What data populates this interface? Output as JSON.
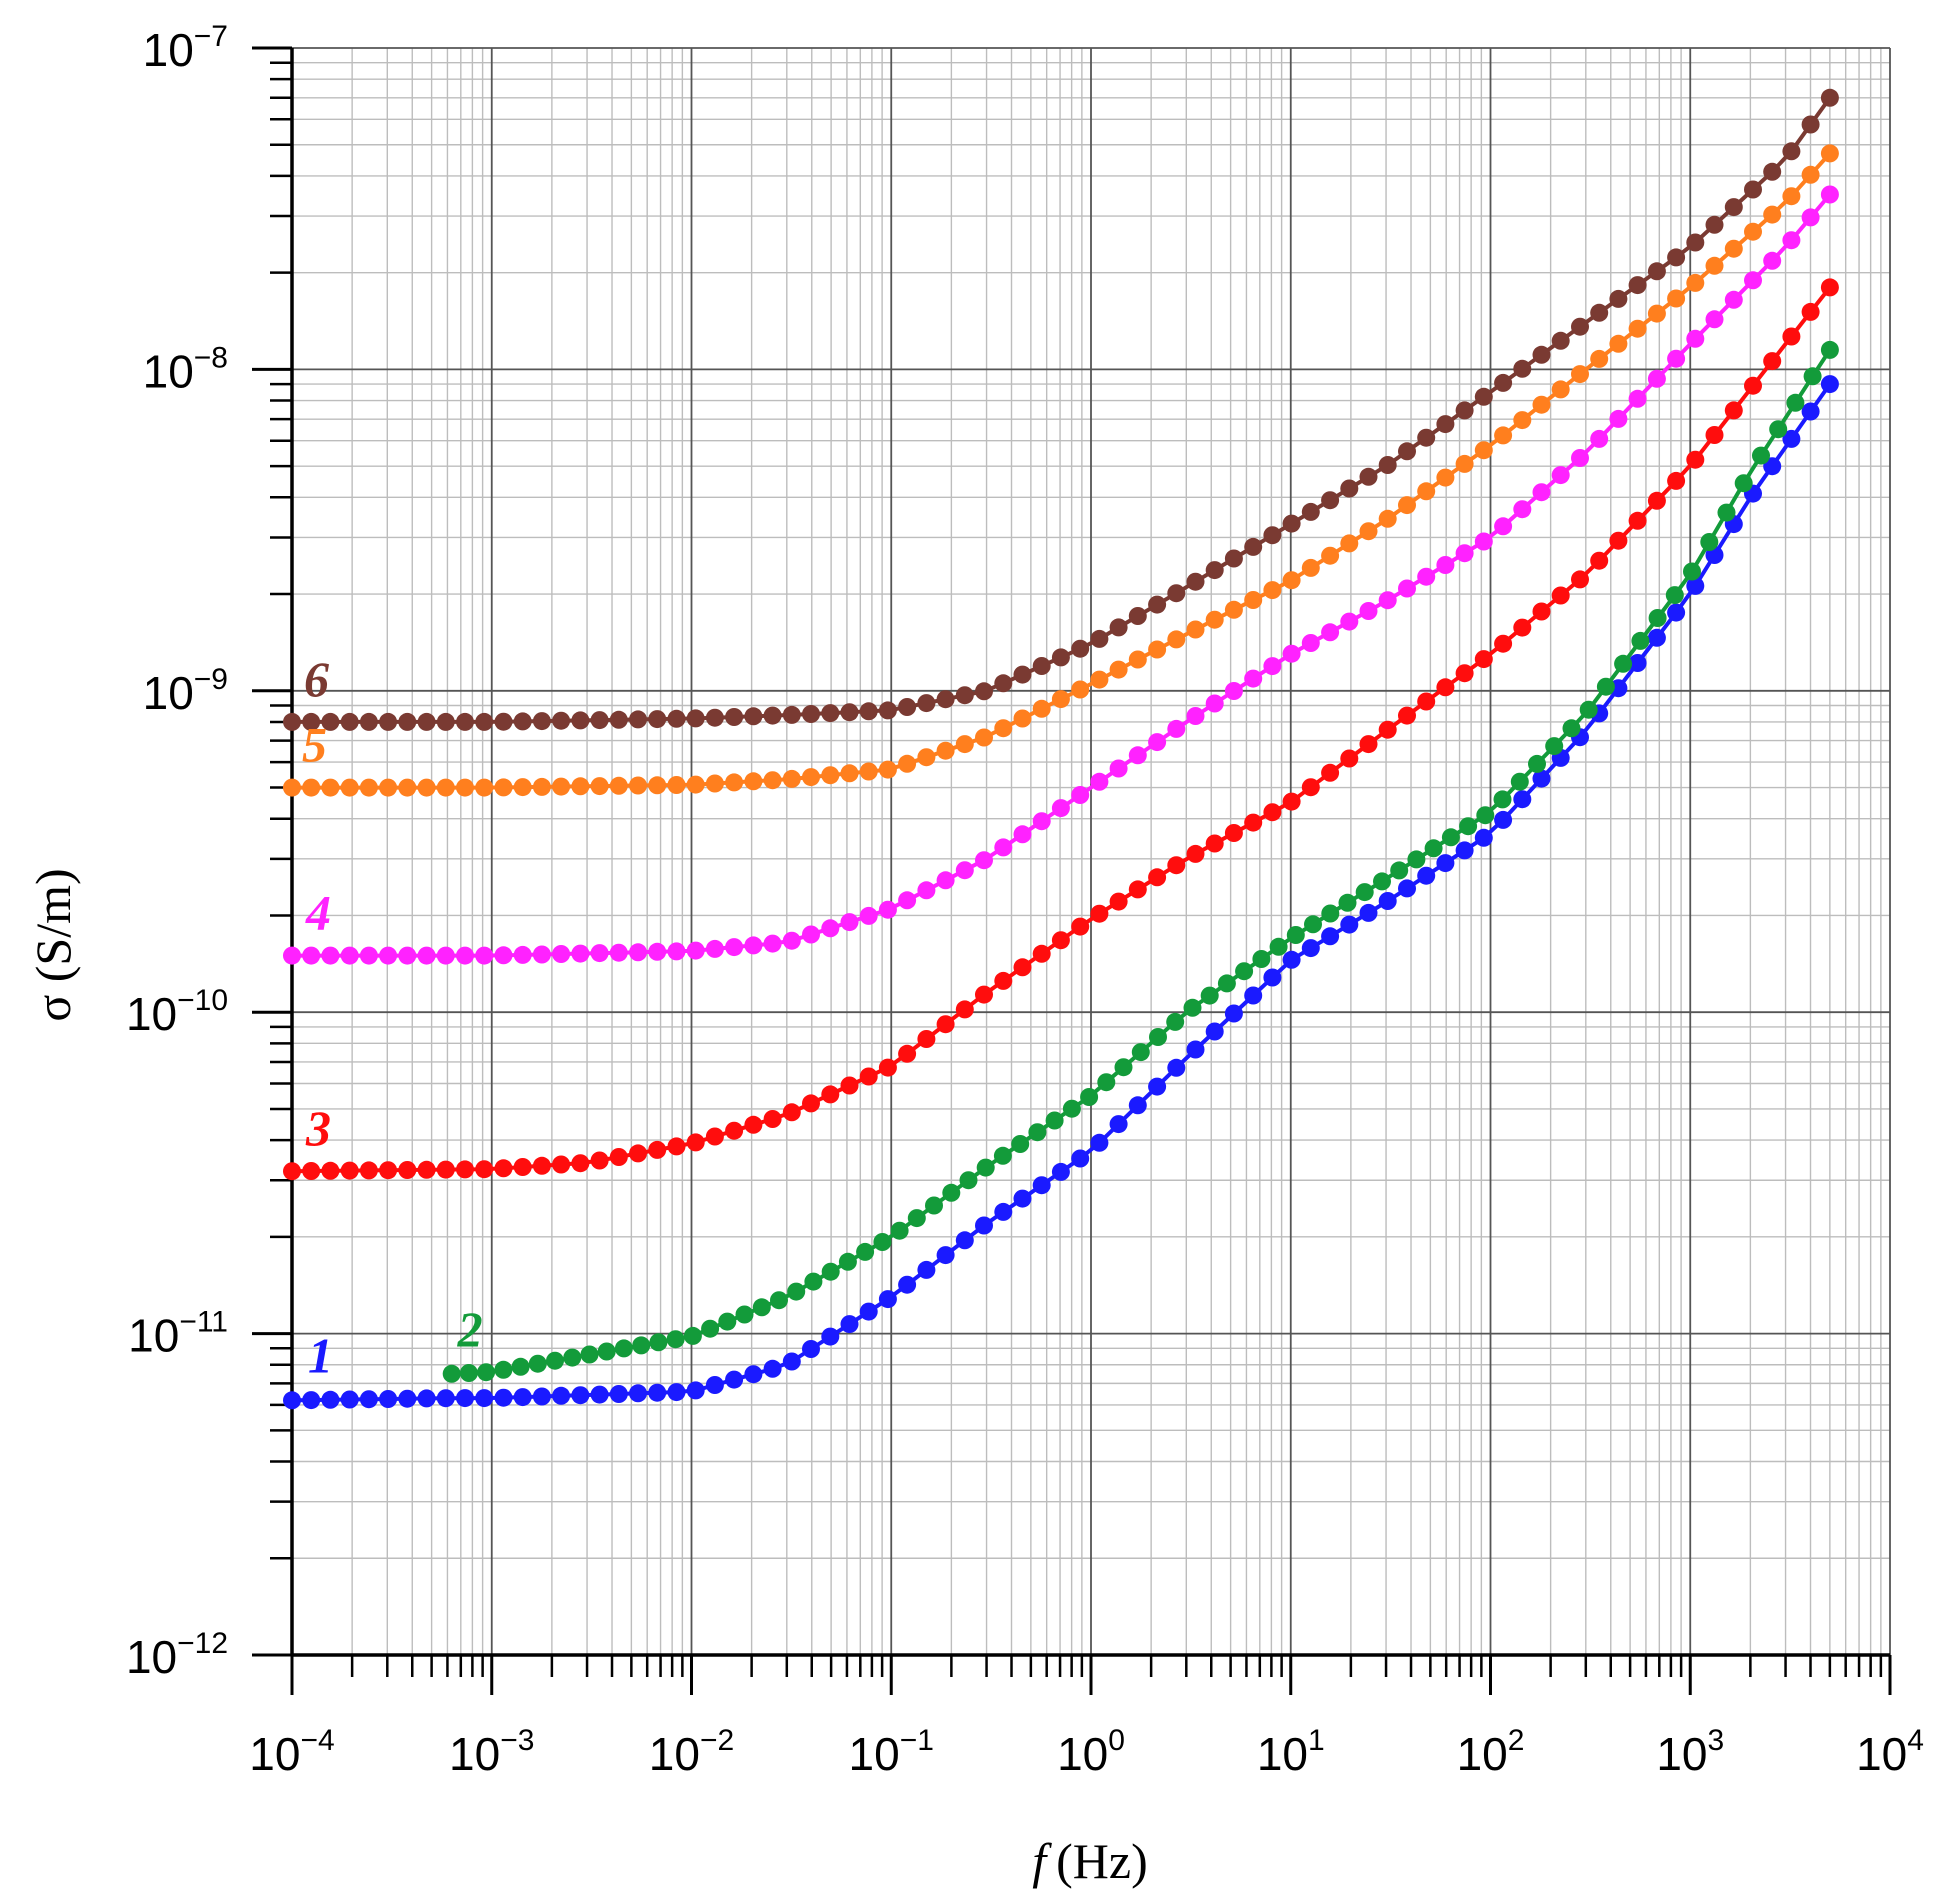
{
  "chart_data": {
    "type": "line",
    "xlabel_var": "f",
    "xlabel_unit": "(Hz)",
    "ylabel": "σ (S/m)",
    "xscale": "log",
    "yscale": "log",
    "xlim": [
      0.0001,
      10000
    ],
    "ylim": [
      1e-12,
      1e-07
    ],
    "grid": true,
    "legend": "none",
    "x_ticks": [
      {
        "base": "10",
        "exp": "−4"
      },
      {
        "base": "10",
        "exp": "−3"
      },
      {
        "base": "10",
        "exp": "−2"
      },
      {
        "base": "10",
        "exp": "−1"
      },
      {
        "base": "10",
        "exp": "0"
      },
      {
        "base": "10",
        "exp": "1"
      },
      {
        "base": "10",
        "exp": "2"
      },
      {
        "base": "10",
        "exp": "3"
      },
      {
        "base": "10",
        "exp": "4"
      }
    ],
    "y_ticks": [
      {
        "base": "10",
        "exp": "−12"
      },
      {
        "base": "10",
        "exp": "−11"
      },
      {
        "base": "10",
        "exp": "−10"
      },
      {
        "base": "10",
        "exp": "−9"
      },
      {
        "base": "10",
        "exp": "−8"
      },
      {
        "base": "10",
        "exp": "−7"
      }
    ],
    "series": [
      {
        "name": "1",
        "color": "#1a1aff",
        "x": [
          0.0001,
          0.00063,
          0.001,
          0.01,
          0.03,
          0.1,
          0.3,
          1,
          3,
          10,
          30,
          100,
          300,
          1000,
          2000,
          5000
        ],
        "y": [
          6.2e-12,
          6.3e-12,
          6.3e-12,
          6.6e-12,
          8e-12,
          1.3e-11,
          2.2e-11,
          3.7e-11,
          7.2e-11,
          1.45e-10,
          2.2e-10,
          3.6e-10,
          7.5e-10,
          2e-09,
          4e-09,
          9e-09
        ]
      },
      {
        "name": "2",
        "color": "#139b3a",
        "x": [
          0.00063,
          0.001,
          0.01,
          0.03,
          0.1,
          0.3,
          1,
          3,
          10,
          30,
          100,
          300,
          1000,
          2000,
          5000
        ],
        "y": [
          7.5e-12,
          7.6e-12,
          9.8e-12,
          1.3e-11,
          2e-11,
          3.3e-11,
          5.5e-11,
          1e-10,
          1.7e-10,
          2.6e-10,
          4.2e-10,
          8.5e-10,
          2.3e-09,
          4.8e-09,
          1.15e-08
        ]
      },
      {
        "name": "3",
        "color": "#ff0d0d",
        "x": [
          0.0001,
          0.001,
          0.003,
          0.01,
          0.03,
          0.1,
          0.3,
          1,
          3,
          10,
          30,
          100,
          300,
          1000,
          3000,
          5000
        ],
        "y": [
          3.2e-11,
          3.25e-11,
          3.4e-11,
          3.9e-11,
          4.8e-11,
          6.8e-11,
          1.15e-10,
          1.95e-10,
          3e-10,
          4.5e-10,
          7.5e-10,
          1.3e-09,
          2.3e-09,
          5e-09,
          1.2e-08,
          1.8e-08
        ]
      },
      {
        "name": "4",
        "color": "#ff22ff",
        "x": [
          0.0001,
          0.001,
          0.01,
          0.03,
          0.1,
          0.3,
          1,
          3,
          10,
          30,
          100,
          300,
          1000,
          3000,
          5000
        ],
        "y": [
          1.5e-10,
          1.5e-10,
          1.55e-10,
          1.65e-10,
          2.1e-10,
          3e-10,
          5e-10,
          8e-10,
          1.3e-09,
          1.9e-09,
          3e-09,
          5.5e-09,
          1.2e-08,
          2.4e-08,
          3.5e-08
        ]
      },
      {
        "name": "5",
        "color": "#ff7f1e",
        "x": [
          0.0001,
          0.001,
          0.01,
          0.03,
          0.1,
          0.3,
          1,
          3,
          10,
          30,
          100,
          300,
          1000,
          3000,
          5000
        ],
        "y": [
          5e-10,
          5e-10,
          5.1e-10,
          5.3e-10,
          5.7e-10,
          7.2e-10,
          1.05e-09,
          1.5e-09,
          2.2e-09,
          3.4e-09,
          5.8e-09,
          1e-08,
          1.8e-08,
          3.3e-08,
          4.7e-08
        ]
      },
      {
        "name": "6",
        "color": "#7a3a32",
        "x": [
          0.0001,
          0.001,
          0.01,
          0.03,
          0.1,
          0.3,
          1,
          3,
          10,
          30,
          100,
          300,
          1000,
          3000,
          5000
        ],
        "y": [
          8e-10,
          8e-10,
          8.2e-10,
          8.4e-10,
          8.7e-10,
          1e-09,
          1.4e-09,
          2.1e-09,
          3.3e-09,
          5e-09,
          8.5e-09,
          1.4e-08,
          2.4e-08,
          4.5e-08,
          7e-08
        ]
      }
    ]
  }
}
